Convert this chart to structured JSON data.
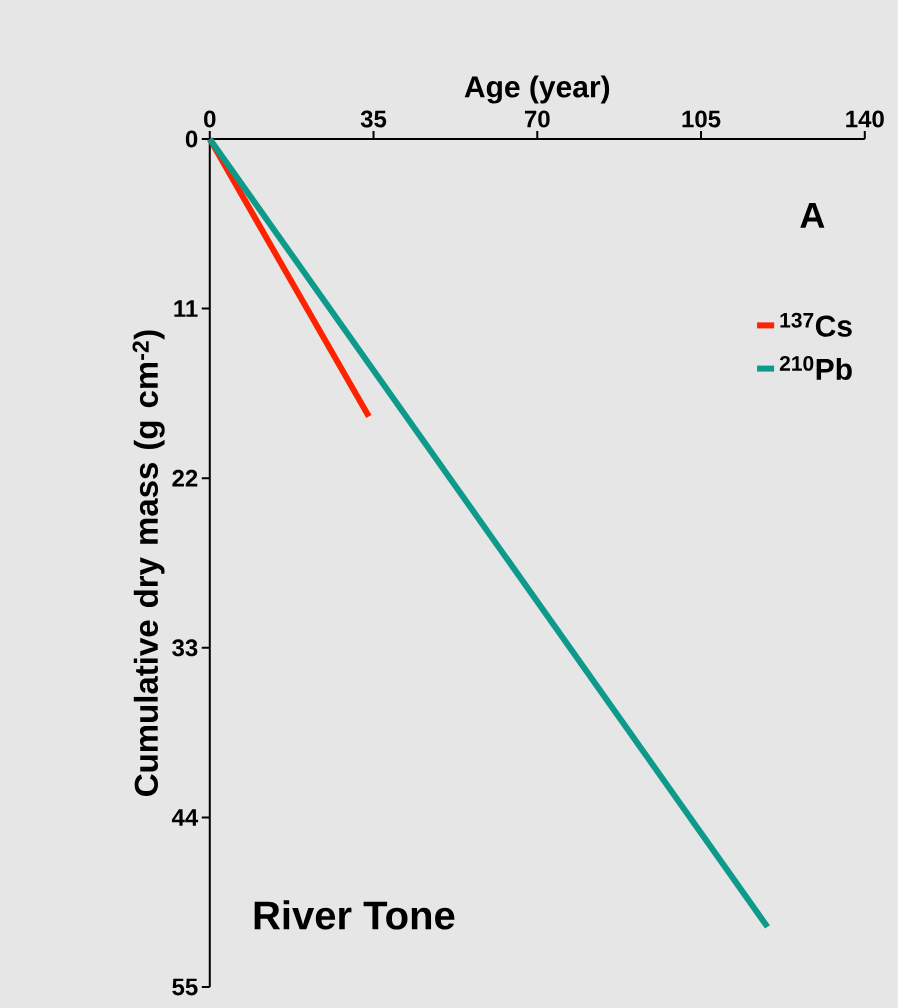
{
  "chart_data": {
    "type": "line",
    "xlabel": "Age (year)",
    "ylabel": "Cumulative dry mass (g cm$^{-2}$)",
    "xlim": [
      0,
      140
    ],
    "xticks": [
      0,
      35,
      70,
      105,
      140
    ],
    "ylim": [
      55,
      0
    ],
    "yticks": [
      0,
      11,
      22,
      33,
      44,
      55
    ],
    "series": [
      {
        "name": "$^{137}$Cs",
        "color": "#ff2200",
        "x": [
          0,
          34
        ],
        "values": [
          0,
          18.0
        ]
      },
      {
        "name": "$^{210}$Pb",
        "color": "#0e9a8a",
        "x": [
          0,
          119.2
        ],
        "values": [
          0,
          51.1
        ]
      }
    ],
    "annotations": [
      "A",
      "River Tone"
    ],
    "legend": "right",
    "grid": false,
    "marker": "none",
    "line_style": "solid"
  }
}
